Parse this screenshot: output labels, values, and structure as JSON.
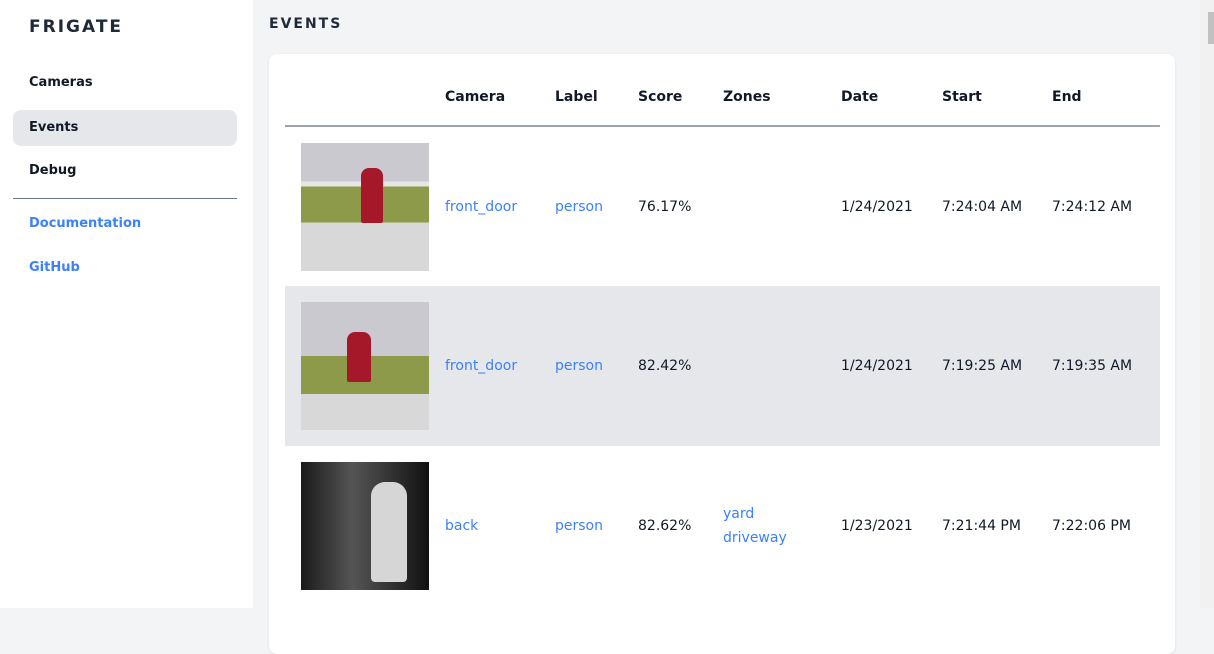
{
  "sidebar": {
    "logo": "FRIGATE",
    "items": [
      {
        "label": "Cameras"
      },
      {
        "label": "Events"
      },
      {
        "label": "Debug"
      }
    ],
    "links": [
      {
        "label": "Documentation"
      },
      {
        "label": "GitHub"
      }
    ]
  },
  "page": {
    "title": "EVENTS"
  },
  "table": {
    "headers": [
      "",
      "Camera",
      "Label",
      "Score",
      "Zones",
      "Date",
      "Start",
      "End"
    ],
    "rows": [
      {
        "camera": "front_door",
        "label": "person",
        "score": "76.17%",
        "zones": [
          "",
          ""
        ],
        "date": "1/24/2021",
        "start": "7:24:04 AM",
        "end": "7:24:12 AM",
        "thumb": "front-door-person-dog"
      },
      {
        "camera": "front_door",
        "label": "person",
        "score": "82.42%",
        "zones": [
          "",
          ""
        ],
        "date": "1/24/2021",
        "start": "7:19:25 AM",
        "end": "7:19:35 AM",
        "thumb": "front-door-person-dog"
      },
      {
        "camera": "back",
        "label": "person",
        "score": "82.62%",
        "zones": [
          "yard",
          "driveway"
        ],
        "date": "1/23/2021",
        "start": "7:21:44 PM",
        "end": "7:22:06 PM",
        "thumb": "back-night-person"
      }
    ]
  },
  "colors": {
    "accent": "#3b82f6",
    "active_bg": "#e5e7eb"
  }
}
